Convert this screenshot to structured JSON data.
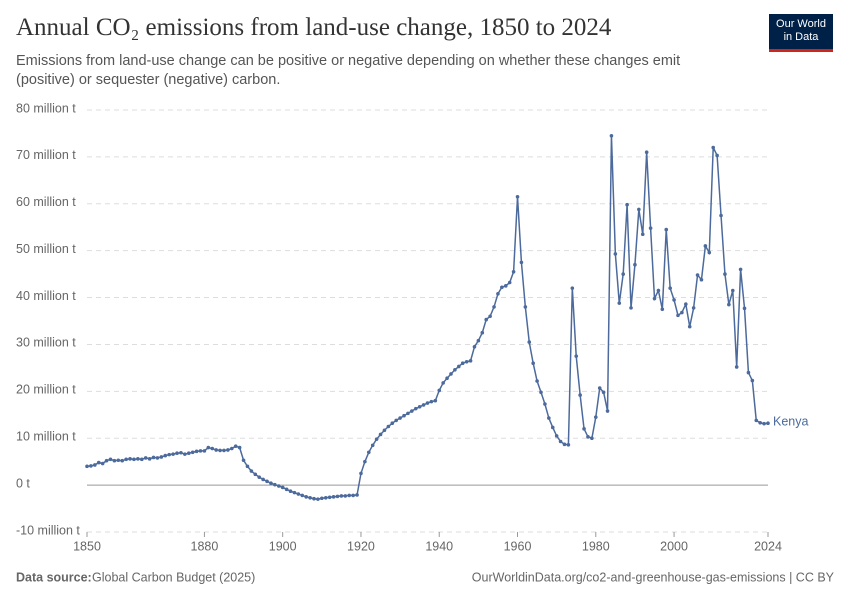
{
  "chart_data": {
    "type": "line",
    "title": "Annual CO₂ emissions from land-use change, 1850 to 2024",
    "subtitle": "Emissions from land-use change can be positive or negative depending on whether these changes emit (positive) or sequester (negative) carbon.",
    "source_label": "Data source:",
    "source": "Global Carbon Budget (2025)",
    "url": "OurWorldinData.org/co2-and-greenhouse-gas-emissions | CC BY",
    "logo": [
      "Our World",
      "in Data"
    ],
    "x": [
      1850,
      1851,
      1852,
      1853,
      1854,
      1855,
      1856,
      1857,
      1858,
      1859,
      1860,
      1861,
      1862,
      1863,
      1864,
      1865,
      1866,
      1867,
      1868,
      1869,
      1870,
      1871,
      1872,
      1873,
      1874,
      1875,
      1876,
      1877,
      1878,
      1879,
      1880,
      1881,
      1882,
      1883,
      1884,
      1885,
      1886,
      1887,
      1888,
      1889,
      1890,
      1891,
      1892,
      1893,
      1894,
      1895,
      1896,
      1897,
      1898,
      1899,
      1900,
      1901,
      1902,
      1903,
      1904,
      1905,
      1906,
      1907,
      1908,
      1909,
      1910,
      1911,
      1912,
      1913,
      1914,
      1915,
      1916,
      1917,
      1918,
      1919,
      1920,
      1921,
      1922,
      1923,
      1924,
      1925,
      1926,
      1927,
      1928,
      1929,
      1930,
      1931,
      1932,
      1933,
      1934,
      1935,
      1936,
      1937,
      1938,
      1939,
      1940,
      1941,
      1942,
      1943,
      1944,
      1945,
      1946,
      1947,
      1948,
      1949,
      1950,
      1951,
      1952,
      1953,
      1954,
      1955,
      1956,
      1957,
      1958,
      1959,
      1960,
      1961,
      1962,
      1963,
      1964,
      1965,
      1966,
      1967,
      1968,
      1969,
      1970,
      1971,
      1972,
      1973,
      1974,
      1975,
      1976,
      1977,
      1978,
      1979,
      1980,
      1981,
      1982,
      1983,
      1984,
      1985,
      1986,
      1987,
      1988,
      1989,
      1990,
      1991,
      1992,
      1993,
      1994,
      1995,
      1996,
      1997,
      1998,
      1999,
      2000,
      2001,
      2002,
      2003,
      2004,
      2005,
      2006,
      2007,
      2008,
      2009,
      2010,
      2011,
      2012,
      2013,
      2014,
      2015,
      2016,
      2017,
      2018,
      2019,
      2020,
      2021,
      2022,
      2023,
      2024
    ],
    "series": [
      {
        "name": "Kenya",
        "color": "#4c6a9c",
        "values": [
          4.0,
          4.1,
          4.3,
          4.8,
          4.6,
          5.2,
          5.5,
          5.2,
          5.3,
          5.2,
          5.5,
          5.6,
          5.5,
          5.6,
          5.5,
          5.8,
          5.6,
          5.9,
          5.8,
          6.0,
          6.3,
          6.5,
          6.6,
          6.8,
          6.9,
          6.6,
          6.8,
          7.0,
          7.2,
          7.3,
          7.3,
          8.0,
          7.8,
          7.5,
          7.4,
          7.4,
          7.5,
          7.8,
          8.3,
          8.0,
          5.3,
          4.0,
          3.0,
          2.3,
          1.7,
          1.2,
          0.8,
          0.4,
          0.1,
          -0.2,
          -0.5,
          -0.9,
          -1.3,
          -1.6,
          -1.9,
          -2.2,
          -2.5,
          -2.7,
          -2.9,
          -3.0,
          -2.8,
          -2.7,
          -2.6,
          -2.5,
          -2.4,
          -2.3,
          -2.3,
          -2.2,
          -2.2,
          -2.1,
          2.5,
          5.0,
          7.0,
          8.5,
          9.8,
          10.8,
          11.7,
          12.5,
          13.2,
          13.8,
          14.3,
          14.8,
          15.3,
          15.8,
          16.3,
          16.7,
          17.1,
          17.5,
          17.8,
          18.0,
          20.2,
          21.8,
          22.8,
          23.7,
          24.6,
          25.3,
          26.0,
          26.3,
          26.5,
          29.5,
          30.8,
          32.5,
          35.3,
          36.0,
          38.0,
          40.8,
          42.2,
          42.5,
          43.2,
          45.5,
          61.5,
          47.5,
          38.0,
          30.5,
          26.0,
          22.2,
          19.8,
          17.3,
          14.3,
          12.3,
          10.5,
          9.3,
          8.7,
          8.6,
          42.0,
          27.5,
          19.2,
          12.0,
          10.3,
          10.0,
          14.5,
          20.7,
          19.8,
          15.8,
          74.5,
          49.3,
          38.8,
          45.0,
          59.8,
          37.8,
          47.0,
          58.8,
          53.5,
          71.0,
          54.8,
          39.8,
          41.5,
          37.5,
          54.5,
          42.0,
          39.5,
          36.2,
          36.8,
          38.6,
          33.8,
          37.8,
          44.8,
          43.8,
          51.0,
          49.6,
          72.0,
          70.3,
          57.5,
          45.0,
          38.5,
          41.5,
          25.2,
          46.0,
          37.7,
          24.0,
          22.3,
          13.8,
          13.3,
          13.1,
          13.2
        ]
      }
    ],
    "xlim": [
      1850,
      2024
    ],
    "xticks": [
      1850,
      1880,
      1900,
      1920,
      1940,
      1960,
      1980,
      2000,
      2024
    ],
    "ylim": [
      -10,
      80
    ],
    "yticks": [
      {
        "value": -10,
        "label": "-10 million t"
      },
      {
        "value": 0,
        "label": "0 t"
      },
      {
        "value": 10,
        "label": "10 million t"
      },
      {
        "value": 20,
        "label": "20 million t"
      },
      {
        "value": 30,
        "label": "30 million t"
      },
      {
        "value": 40,
        "label": "40 million t"
      },
      {
        "value": 50,
        "label": "50 million t"
      },
      {
        "value": 60,
        "label": "60 million t"
      },
      {
        "value": 70,
        "label": "70 million t"
      },
      {
        "value": 80,
        "label": "80 million t"
      }
    ],
    "grid": true
  }
}
